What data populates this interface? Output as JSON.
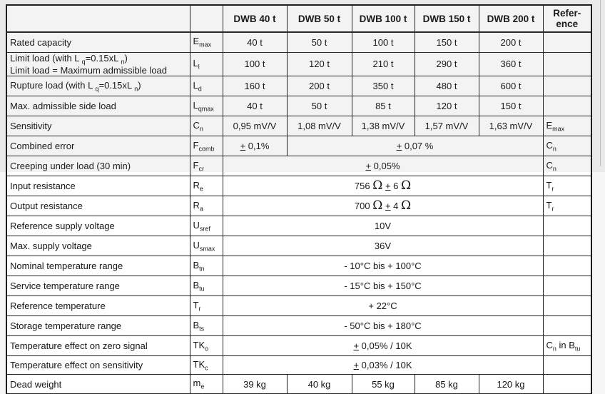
{
  "table": {
    "header": [
      "",
      "",
      "DWB 40 t",
      "DWB 50 t",
      "DWB 100 t",
      "DWB 150 t",
      "DWB 200 t",
      "Refer-\nence"
    ],
    "rows": [
      {
        "label": "Rated capacity",
        "sym": "E_{max}",
        "values": [
          "40 t",
          "50 t",
          "100 t",
          "150 t",
          "200 t"
        ],
        "ref": ""
      },
      {
        "label": "Limit load (with L _{q}=0.15xL _{n})\nLimit load = Maximum admissible load",
        "sym": "L_{l}",
        "values": [
          "100 t",
          "120 t",
          "210 t",
          "290 t",
          "360 t"
        ],
        "ref": ""
      },
      {
        "label": "Rupture load (with L _{q}=0.15xL _{n})",
        "sym": "L_{d}",
        "values": [
          "160 t",
          "200 t",
          "350 t",
          "480 t",
          "600 t"
        ],
        "ref": ""
      },
      {
        "label": "Max. admissible side load",
        "sym": "L_{qmax}",
        "values": [
          "40 t",
          "50 t",
          "85 t",
          "120 t",
          "150 t"
        ],
        "ref": ""
      },
      {
        "label": "Sensitivity",
        "sym": "C_{n}",
        "values": [
          "0,95 mV/V",
          "1,08 mV/V",
          "1,38 mV/V",
          "1,57 mV/V",
          "1,63 mV/V"
        ],
        "ref": "E_{max}"
      },
      {
        "label": "Combined error",
        "sym": "F_{comb}",
        "values": [
          {
            "t": "± 0,1%",
            "span": 1
          },
          {
            "t": "± 0,07 %",
            "span": 4
          }
        ],
        "ref": "C_{n}"
      },
      {
        "label": "Creeping under load (30 min)",
        "sym": "F_{cr}",
        "values": [
          {
            "t": "± 0,05%",
            "span": 5
          }
        ],
        "ref": "C_{n}"
      },
      {
        "label": "Input resistance",
        "sym": "R_{e}",
        "values": [
          {
            "t": "756 Ω ± 6 Ω",
            "span": 5
          }
        ],
        "ref": "T_{r}"
      },
      {
        "label": "Output resistance",
        "sym": "R_{a}",
        "values": [
          {
            "t": "700 Ω ± 4 Ω",
            "span": 5
          }
        ],
        "ref": "T_{r}"
      },
      {
        "label": "Reference supply voltage",
        "sym": "U_{sref}",
        "values": [
          {
            "t": "10V",
            "span": 5
          }
        ],
        "ref": ""
      },
      {
        "label": "Max. supply voltage",
        "sym": "U_{smax}",
        "values": [
          {
            "t": "36V",
            "span": 5
          }
        ],
        "ref": ""
      },
      {
        "label": "Nominal temperature range",
        "sym": "B_{tn}",
        "values": [
          {
            "t": "- 10°C bis + 100°C",
            "span": 5
          }
        ],
        "ref": ""
      },
      {
        "label": "Service temperature range",
        "sym": "B_{tu}",
        "values": [
          {
            "t": "- 15°C bis + 150°C",
            "span": 5
          }
        ],
        "ref": ""
      },
      {
        "label": "Reference temperature",
        "sym": "T_{r}",
        "values": [
          {
            "t": "+ 22°C",
            "span": 5
          }
        ],
        "ref": ""
      },
      {
        "label": "Storage temperature range",
        "sym": "B_{ts}",
        "values": [
          {
            "t": "- 50°C bis + 180°C",
            "span": 5
          }
        ],
        "ref": ""
      },
      {
        "label": "Temperature effect on zero signal",
        "sym": "TK_{o}",
        "values": [
          {
            "t": "± 0,05% / 10K",
            "span": 5
          }
        ],
        "ref": "C_{n} in B_{tu}"
      },
      {
        "label": "Temperature effect on sensitivity",
        "sym": "TK_{c}",
        "values": [
          {
            "t": "± 0,03% / 10K",
            "span": 5
          }
        ],
        "ref": ""
      },
      {
        "label": "Dead weight",
        "sym": "m_{e}",
        "values": [
          "39 kg",
          "40 kg",
          "55 kg",
          "85 kg",
          "120 kg"
        ],
        "ref": ""
      },
      {
        "label": "",
        "sym": "",
        "values": [
          "",
          "",
          "",
          "",
          ""
        ],
        "ref": ""
      }
    ]
  },
  "colors": {
    "cell_background": "#ffffff",
    "border": "#1c1c1c",
    "text": "#161616",
    "page_margin_top": "#e9e9e9",
    "page_margin_bottom": "#f6f6f6"
  }
}
